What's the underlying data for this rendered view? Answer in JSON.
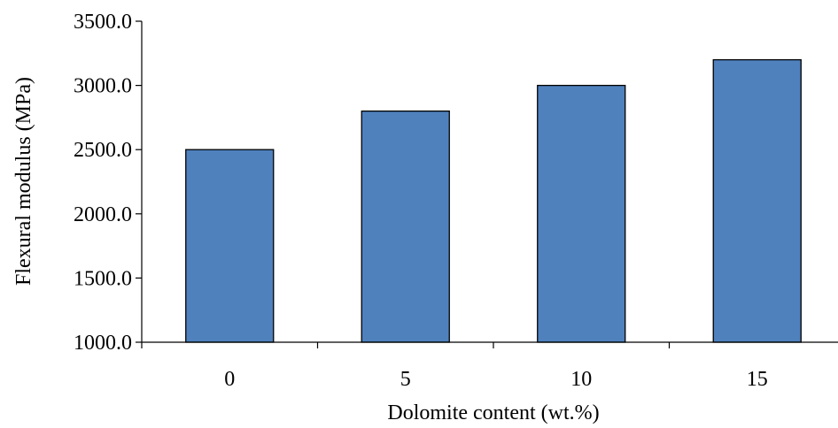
{
  "chart_data": {
    "type": "bar",
    "categories": [
      "0",
      "5",
      "10",
      "15"
    ],
    "values": [
      2500,
      2800,
      3000,
      3200
    ],
    "xlabel": "Dolomite content (wt.%)",
    "ylabel": "Flexural modulus (MPa)",
    "ylim": [
      1000,
      3500
    ],
    "yticks": [
      "1000.0",
      "1500.0",
      "2000.0",
      "2500.0",
      "3000.0",
      "3500.0"
    ],
    "grid": false,
    "legend": "none",
    "bar_color": "#4f81bd"
  }
}
